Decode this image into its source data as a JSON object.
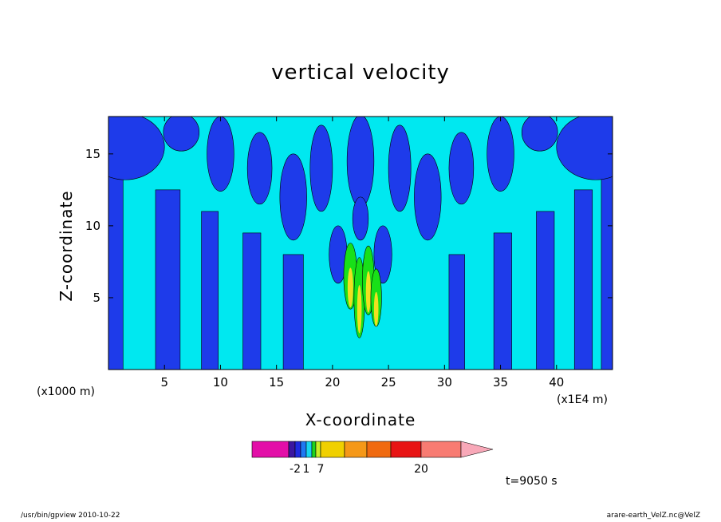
{
  "chart_data": {
    "type": "heatmap",
    "title": "vertical velocity",
    "xlabel": "X-coordinate",
    "ylabel": "Z-coordinate",
    "x_unit_left": "(x1000 m)",
    "x_unit_right": "(x1E4 m)",
    "x_ticks": [
      5,
      10,
      15,
      20,
      25,
      30,
      35,
      40
    ],
    "y_ticks": [
      5,
      10,
      15
    ],
    "xlim": [
      0,
      45
    ],
    "ylim": [
      0,
      17.6
    ],
    "time_label": "t=9050 s",
    "colorbar": {
      "colors": [
        "#e30fa8",
        "#e30fa8",
        "#3a16a0",
        "#1f2ae0",
        "#1e78f2",
        "#18d4f0",
        "#1ed41e",
        "#c8f028",
        "#f0d000",
        "#f59818",
        "#f06a10",
        "#e81414",
        "#f87b72",
        "#f8a8b8"
      ],
      "labels": [
        {
          "text": "-2",
          "index": 3
        },
        {
          "text": "1",
          "index": 5
        },
        {
          "text": "7",
          "index": 8
        },
        {
          "text": "20",
          "index": 12
        }
      ]
    },
    "field_colors": {
      "negative": "#1e3bea",
      "near_zero": "#00e8f0",
      "positive_low": "#18e018",
      "positive_mid": "#f0e020"
    }
  },
  "footer": {
    "left": "/usr/bin/gpview   2010-10-22",
    "right": "arare-earth_VelZ.nc@VelZ"
  }
}
